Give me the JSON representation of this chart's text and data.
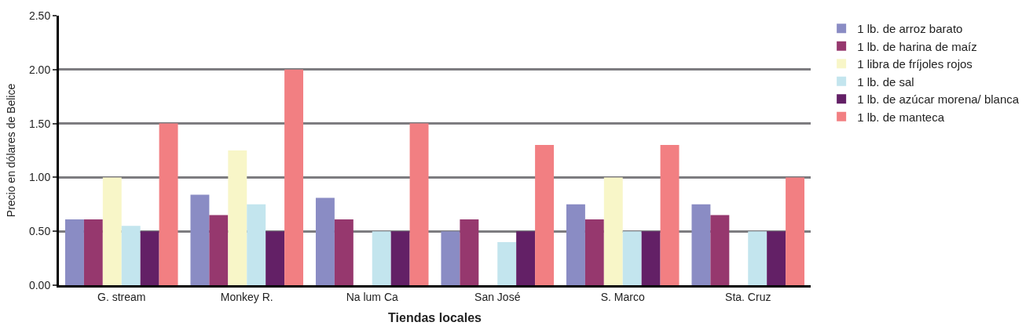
{
  "chart_data": {
    "type": "bar",
    "xlabel": "Tiendas locales",
    "ylabel": "Precio en dólares de Belice",
    "categories": [
      "G. stream",
      "Monkey R.",
      "Na lum Ca",
      "San José",
      "S. Marco",
      "Sta. Cruz"
    ],
    "series": [
      {
        "name": "1 lb. de arroz barato",
        "color": "#8a8cc4",
        "values": [
          0.61,
          0.84,
          0.81,
          0.5,
          0.75,
          0.75
        ]
      },
      {
        "name": "1 lb. de harina de maíz",
        "color": "#96386e",
        "values": [
          0.61,
          0.65,
          0.61,
          0.61,
          0.61,
          0.65
        ]
      },
      {
        "name": "1 libra de fríjoles rojos",
        "color": "#f8f6c8",
        "values": [
          1.0,
          1.25,
          null,
          null,
          1.0,
          null
        ]
      },
      {
        "name": "1 lb. de sal",
        "color": "#c3e5ee",
        "values": [
          0.55,
          0.75,
          0.5,
          0.4,
          0.5,
          0.5
        ]
      },
      {
        "name": "1 lb. de azúcar morena/ blanca",
        "color": "#632066",
        "values": [
          0.5,
          0.5,
          0.5,
          0.5,
          0.5,
          0.5
        ]
      },
      {
        "name": "1 lb. de manteca",
        "color": "#f27f82",
        "values": [
          1.5,
          2.0,
          1.5,
          1.3,
          1.3,
          1.0
        ]
      }
    ],
    "ylim": [
      0,
      2.5
    ],
    "yticks": [
      {
        "value": 0,
        "label": "0.00"
      },
      {
        "value": 0.5,
        "label": "0.50"
      },
      {
        "value": 1,
        "label": "1.00"
      },
      {
        "value": 1.5,
        "label": "1.50"
      },
      {
        "value": 2,
        "label": "2.00"
      },
      {
        "value": 2.5,
        "label": "2.50"
      }
    ],
    "grid": "y",
    "legend": "right"
  }
}
